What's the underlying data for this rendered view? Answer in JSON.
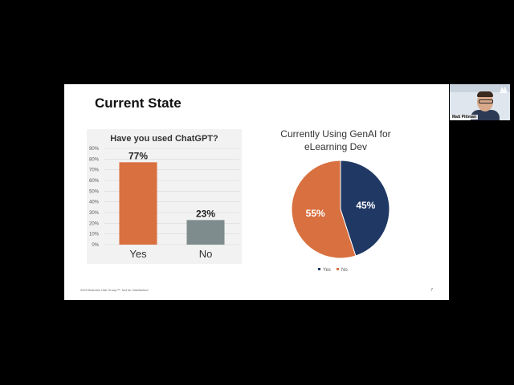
{
  "slide": {
    "title": "Current State",
    "footer_text": "2023 Brandon Hall Group™. Not for Distribution",
    "page_number": "7"
  },
  "chart_data": [
    {
      "type": "bar",
      "title": "Have you used ChatGPT?",
      "categories": [
        "Yes",
        "No"
      ],
      "values": [
        77,
        23
      ],
      "value_labels": [
        "77%",
        "23%"
      ],
      "colors": [
        "#d9703f",
        "#7f8c8d"
      ],
      "ylim": [
        0,
        90
      ],
      "yticks": [
        "0%",
        "10%",
        "20%",
        "30%",
        "40%",
        "50%",
        "60%",
        "70%",
        "80%",
        "90%"
      ],
      "grid": true
    },
    {
      "type": "pie",
      "title": "Currently Using GenAI for eLearning Dev",
      "title_lines": [
        "Currently Using GenAI for",
        "eLearning Dev"
      ],
      "categories": [
        "Yes",
        "No"
      ],
      "values": [
        45,
        55
      ],
      "value_labels": [
        "45%",
        "55%"
      ],
      "colors": [
        "#1f3864",
        "#d9703f"
      ],
      "legend_placement": "bottom"
    }
  ],
  "participant": {
    "name": "Matt Pittman"
  }
}
